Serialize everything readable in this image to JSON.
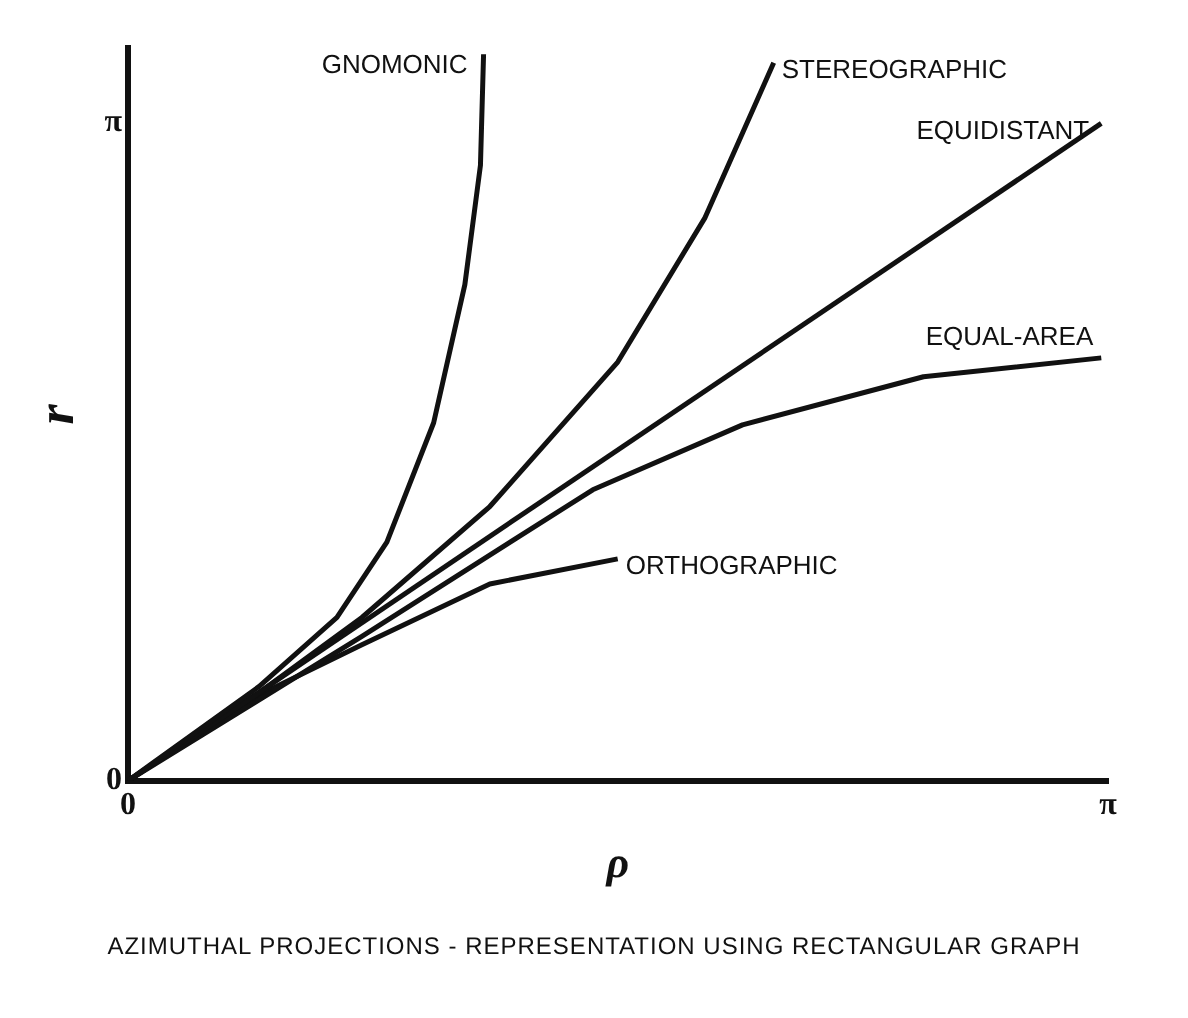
{
  "chart_data": {
    "type": "line",
    "xlabel": "ρ",
    "ylabel": "r",
    "annotations": [
      "AZIMUTHAL PROJECTIONS - REPRESENTATION USING RECTANGULAR GRAPH"
    ],
    "xlim": [
      0,
      3.1416
    ],
    "ylim": [
      0,
      3.5
    ],
    "xticks": [
      {
        "value": 0,
        "label": "0"
      },
      {
        "value": 3.1416,
        "label": "π"
      }
    ],
    "yticks": [
      {
        "value": 0,
        "label": "0"
      },
      {
        "value": 3.1416,
        "label": "π"
      }
    ],
    "grid": false,
    "legend": false,
    "marker": "none",
    "line_style": "solid",
    "series": [
      {
        "name": "GNOMONIC",
        "color": "#111111",
        "x": [
          0,
          0.42,
          0.67,
          0.83,
          0.98,
          1.08,
          1.13,
          1.14
        ],
        "values": [
          0,
          0.45,
          0.78,
          1.14,
          1.71,
          2.37,
          2.94,
          3.47
        ]
      },
      {
        "name": "STEREOGRAPHIC",
        "color": "#111111",
        "x": [
          0,
          0.42,
          0.75,
          1.16,
          1.57,
          1.85,
          2.07
        ],
        "values": [
          0,
          0.42,
          0.78,
          1.31,
          2.0,
          2.69,
          3.43
        ]
      },
      {
        "name": "EQUIDISTANT",
        "color": "#111111",
        "x": [
          0,
          3.12
        ],
        "values": [
          0,
          3.14
        ]
      },
      {
        "name": "EQUAL-AREA",
        "color": "#111111",
        "x": [
          0,
          0.75,
          1.49,
          1.97,
          2.55,
          3.12
        ],
        "values": [
          0,
          0.69,
          1.39,
          1.7,
          1.93,
          2.02
        ]
      },
      {
        "name": "ORTHOGRAPHIC",
        "color": "#111111",
        "x": [
          0,
          0.42,
          0.75,
          1.16,
          1.57
        ],
        "values": [
          0,
          0.41,
          0.65,
          0.94,
          1.06
        ]
      }
    ]
  }
}
